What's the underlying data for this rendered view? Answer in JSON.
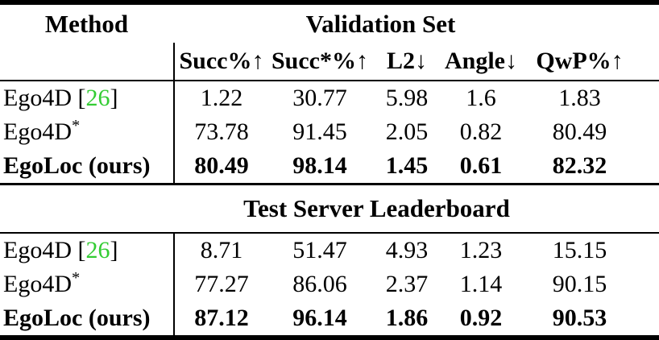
{
  "colors": {
    "background": "#ffffff",
    "text": "#000000",
    "citation_green": "#33cc33"
  },
  "table": {
    "method_header": "Method",
    "columns": [
      "Succ%↑",
      "Succ*%↑",
      "L2↓",
      "Angle↓",
      "QwP%↑"
    ],
    "sections": [
      {
        "title": "Validation Set",
        "rows": [
          {
            "pre": "Ego4D [",
            "cite": "26",
            "post": "]",
            "sup": "",
            "bold": false,
            "values": [
              "1.22",
              "30.77",
              "5.98",
              "1.6",
              "1.83"
            ]
          },
          {
            "pre": "Ego4D",
            "cite": "",
            "post": "",
            "sup": "*",
            "bold": false,
            "values": [
              "73.78",
              "91.45",
              "2.05",
              "0.82",
              "80.49"
            ]
          },
          {
            "pre": "EgoLoc (ours)",
            "cite": "",
            "post": "",
            "sup": "",
            "bold": true,
            "values": [
              "80.49",
              "98.14",
              "1.45",
              "0.61",
              "82.32"
            ]
          }
        ]
      },
      {
        "title": "Test Server Leaderboard",
        "rows": [
          {
            "pre": "Ego4D [",
            "cite": "26",
            "post": "]",
            "sup": "",
            "bold": false,
            "values": [
              "8.71",
              "51.47",
              "4.93",
              "1.23",
              "15.15"
            ]
          },
          {
            "pre": "Ego4D",
            "cite": "",
            "post": "",
            "sup": "*",
            "bold": false,
            "values": [
              "77.27",
              "86.06",
              "2.37",
              "1.14",
              "90.15"
            ]
          },
          {
            "pre": "EgoLoc (ours)",
            "cite": "",
            "post": "",
            "sup": "",
            "bold": true,
            "values": [
              "87.12",
              "96.14",
              "1.86",
              "0.92",
              "90.53"
            ]
          }
        ]
      }
    ]
  }
}
